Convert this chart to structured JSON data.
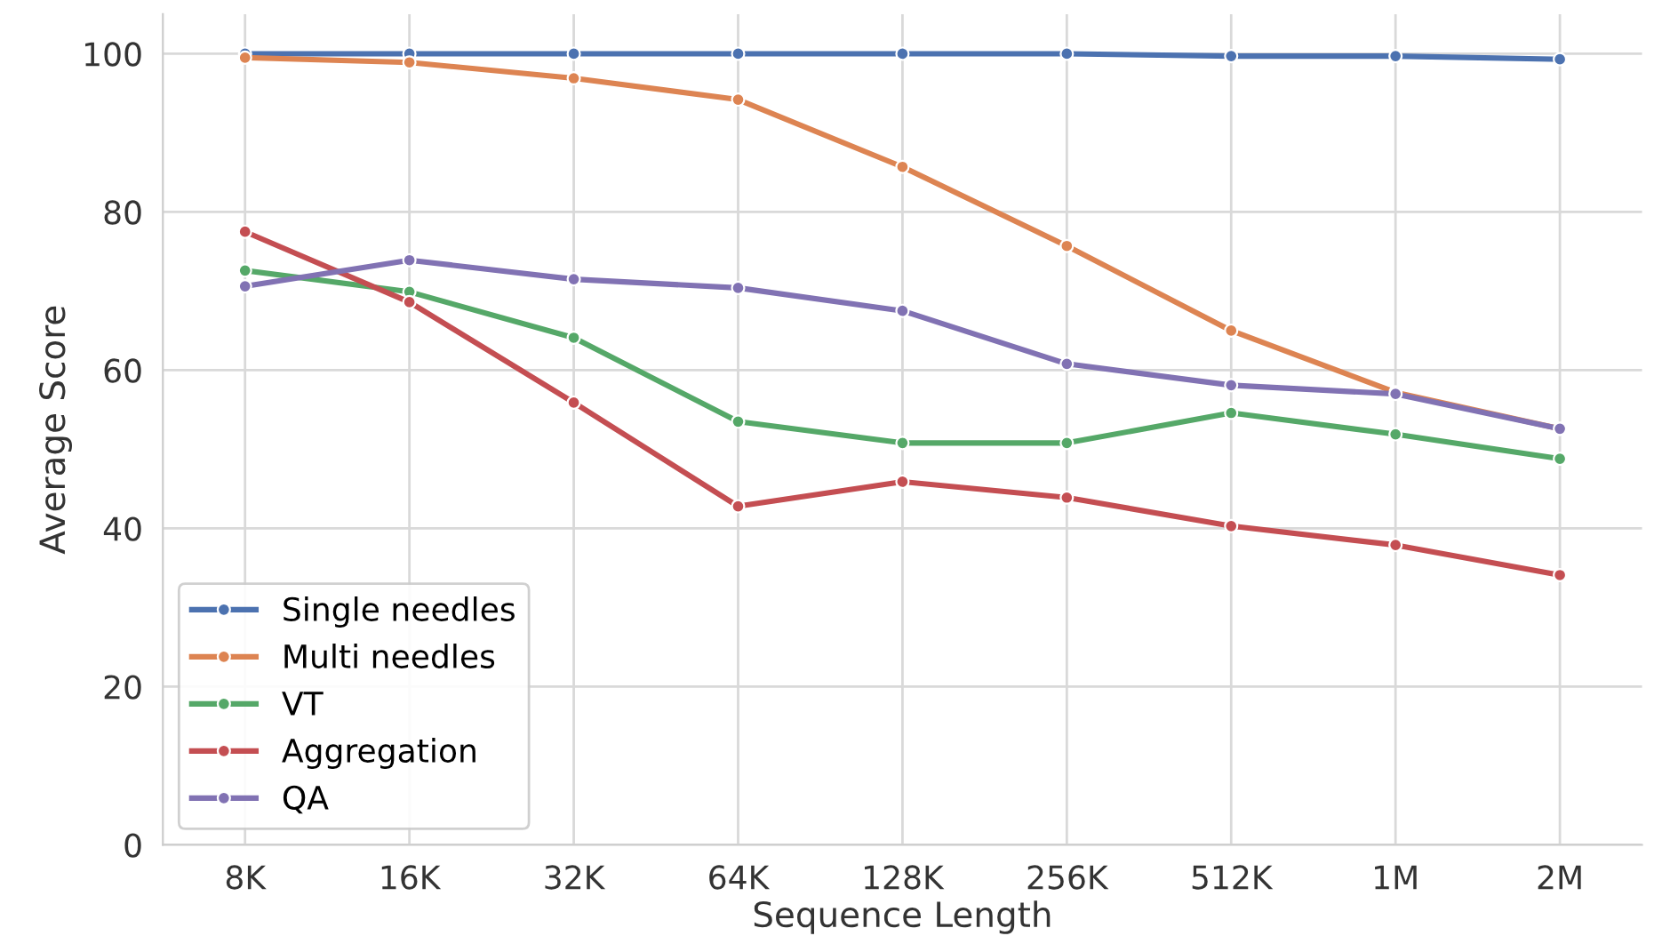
{
  "chart_data": {
    "type": "line",
    "xlabel": "Sequence Length",
    "ylabel": "Average Score",
    "categories": [
      "8K",
      "16K",
      "32K",
      "64K",
      "128K",
      "256K",
      "512K",
      "1M",
      "2M"
    ],
    "series": [
      {
        "name": "Single needles",
        "color": "#4c72b0",
        "values": [
          100,
          100,
          100,
          100,
          100,
          100,
          99.7,
          99.7,
          99.3
        ]
      },
      {
        "name": "Multi needles",
        "color": "#dd8452",
        "values": [
          99.5,
          98.9,
          96.9,
          94.2,
          85.7,
          75.7,
          65.0,
          57.2,
          52.6
        ]
      },
      {
        "name": "VT",
        "color": "#55a868",
        "values": [
          72.6,
          69.9,
          64.1,
          53.5,
          50.8,
          50.8,
          54.6,
          51.9,
          48.8
        ]
      },
      {
        "name": "Aggregation",
        "color": "#c44e52",
        "values": [
          77.5,
          68.6,
          55.9,
          42.8,
          45.9,
          43.9,
          40.3,
          37.9,
          34.1
        ]
      },
      {
        "name": "QA",
        "color": "#8172b3",
        "values": [
          70.6,
          73.9,
          71.5,
          70.4,
          67.5,
          60.8,
          58.1,
          57.0,
          52.6
        ]
      }
    ],
    "ylim": [
      0,
      105
    ],
    "yticks": [
      0,
      20,
      40,
      60,
      80,
      100
    ],
    "grid": true,
    "legend": "bottom left",
    "marker": "circle",
    "line_style": "solid"
  }
}
